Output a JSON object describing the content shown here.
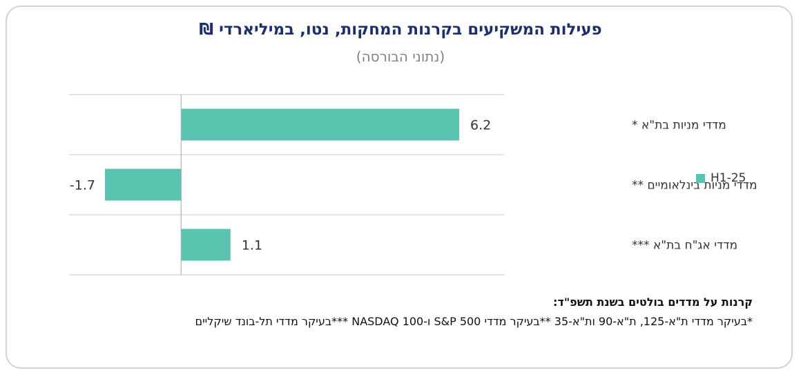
{
  "chart_data": {
    "type": "bar",
    "orientation": "horizontal",
    "title": "פעילות המשקיעים בקרנות המחקות, נטו, במיליארדי ₪",
    "subtitle": "(נתוני הבורסה)",
    "categories": [
      "מדדי מניות בת\"א *",
      "מדדי מניות בינלאומיים **",
      "מדדי אג\"ח בת\"א ***"
    ],
    "series": [
      {
        "name": "H1-25",
        "values": [
          6.2,
          -1.7,
          1.1
        ]
      }
    ],
    "data_labels": [
      "6.2",
      "-1.7",
      "1.1"
    ],
    "xlim": [
      -2.5,
      7.2
    ],
    "grid": "horizontal separators",
    "legend_position": "right",
    "colors": {
      "bar": "#5bc4b1",
      "grid": "#d9d9d9",
      "title": "#1d2d72",
      "subtitle": "#808080"
    }
  },
  "notes": {
    "heading": "קרנות על מדדים בולטים בשנת תשפ\"ד:",
    "body": "*בעיקר מדדי ת\"א-125, ת\"א-90 ות\"א-35 **בעיקר מדדי  S&P 500 ו-NASDAQ 100  ***בעיקר מדדי תל-בונד שיקליים"
  }
}
